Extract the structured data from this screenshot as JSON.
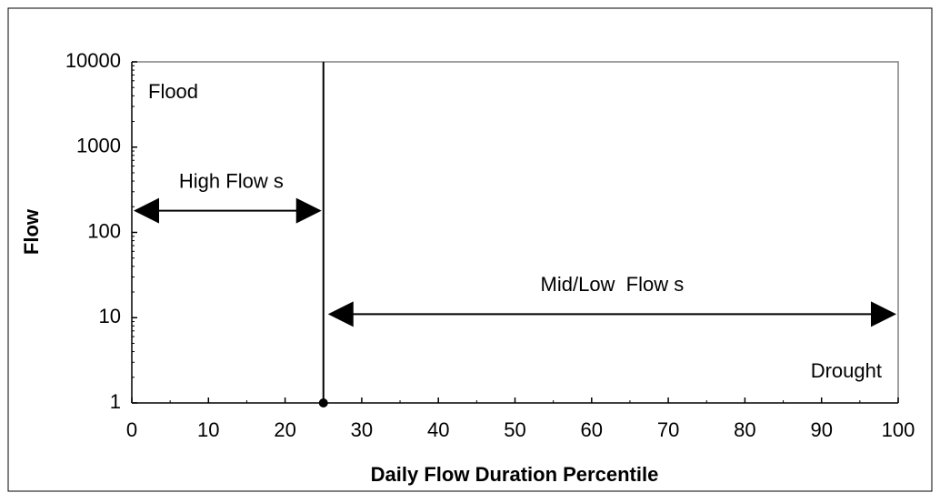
{
  "chart_data": {
    "type": "line",
    "x_label": "Daily Flow Duration Percentile",
    "y_label": "Flow",
    "xlim": [
      0,
      100
    ],
    "xticks": [
      0,
      10,
      20,
      30,
      40,
      50,
      60,
      70,
      80,
      90,
      100
    ],
    "ylim": [
      1,
      10000
    ],
    "yticks": [
      1,
      10,
      100,
      1000,
      10000
    ],
    "y_scale": "log",
    "grid": false,
    "series": [
      {
        "color": "#000000",
        "x": [
          25,
          25
        ],
        "values": [
          1,
          10000
        ]
      }
    ],
    "annotations": [
      {
        "text": "High Flow s",
        "from": 0,
        "to": 25,
        "level": 180
      },
      {
        "text": "Mid/Low  Flow s",
        "from": 25,
        "to": 100,
        "level": 11
      }
    ],
    "zone_labels": [
      "Flood",
      "Drought"
    ]
  }
}
